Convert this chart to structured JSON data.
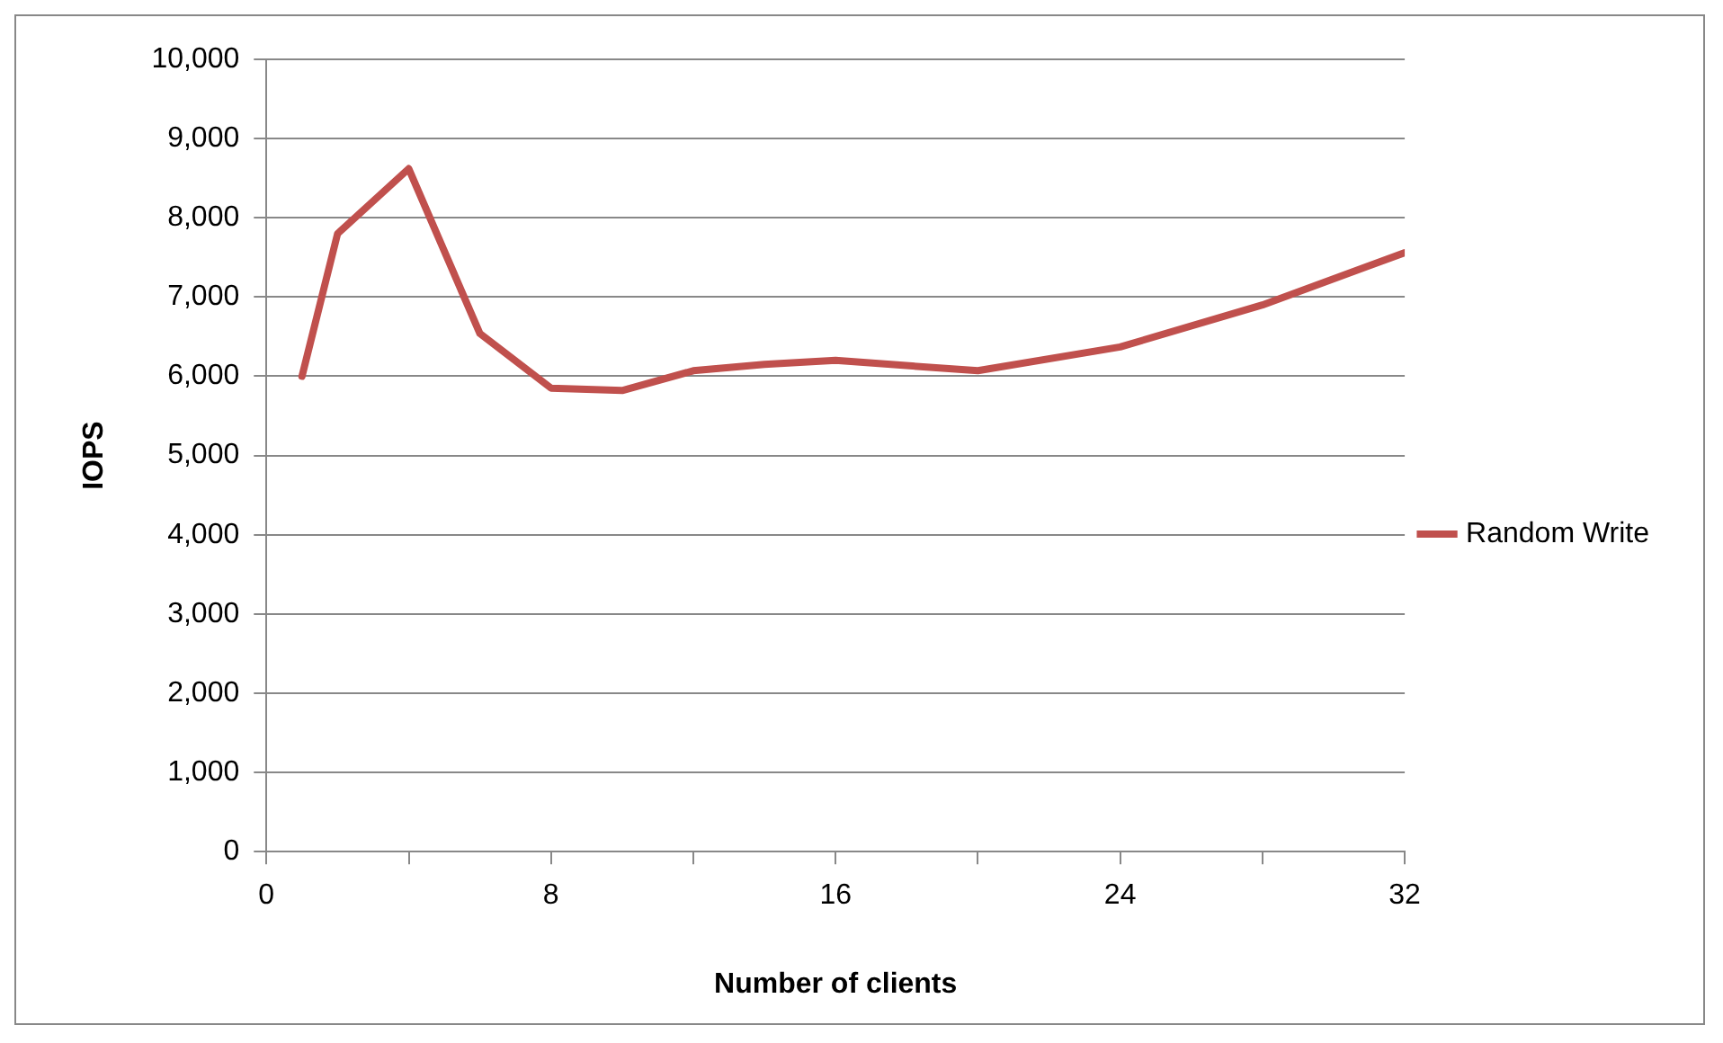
{
  "chart_data": {
    "type": "line",
    "xlabel": "Number of clients",
    "ylabel": "IOPS",
    "x": [
      1,
      2,
      4,
      6,
      8,
      10,
      12,
      14,
      16,
      20,
      24,
      28,
      32
    ],
    "series": [
      {
        "name": "Random Write",
        "color": "#c0504d",
        "values": [
          6000,
          7800,
          8620,
          6540,
          5850,
          5820,
          6070,
          6150,
          6200,
          6070,
          6370,
          6900,
          7560
        ]
      }
    ],
    "xlim": [
      0,
      32
    ],
    "xticks": [
      0,
      {
        "value": 4,
        "label": null
      },
      8,
      {
        "value": 12,
        "label": null
      },
      16,
      {
        "value": 20,
        "label": null
      },
      24,
      {
        "value": 28,
        "label": null
      },
      32
    ],
    "ylim": [
      0,
      10000
    ],
    "yticks": [
      0,
      {
        "value": 1000,
        "label": "1,000"
      },
      {
        "value": 2000,
        "label": "2,000"
      },
      {
        "value": 3000,
        "label": "3,000"
      },
      {
        "value": 4000,
        "label": "4,000"
      },
      {
        "value": 5000,
        "label": "5,000"
      },
      {
        "value": 6000,
        "label": "6,000"
      },
      {
        "value": 7000,
        "label": "7,000"
      },
      {
        "value": 8000,
        "label": "8,000"
      },
      {
        "value": 9000,
        "label": "9,000"
      },
      {
        "value": 10000,
        "label": "10,000"
      }
    ],
    "grid": "y",
    "legend": "right",
    "marker": "none",
    "line_style": "solid"
  }
}
